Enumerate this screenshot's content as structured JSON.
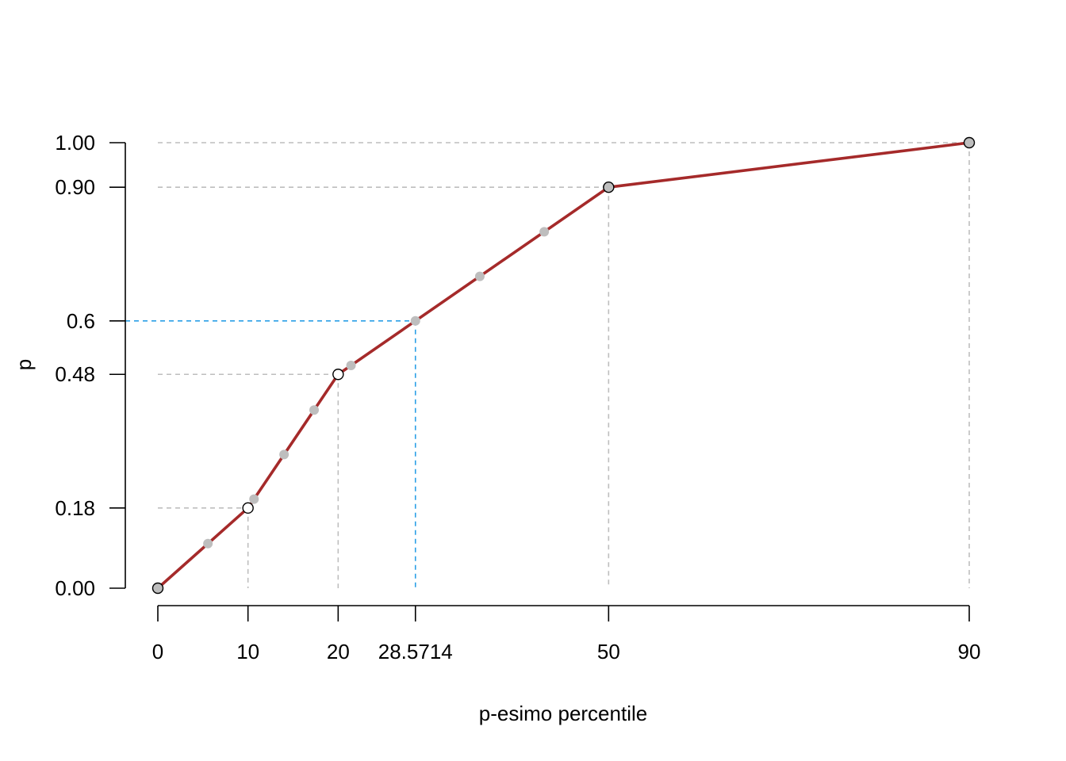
{
  "chart_data": {
    "type": "line",
    "title": "",
    "xlabel": "p-esimo percentile",
    "ylabel": "p",
    "xlim": [
      0,
      90
    ],
    "ylim": [
      0,
      1
    ],
    "x_ticks": [
      {
        "value": 0,
        "label": "0"
      },
      {
        "value": 10,
        "label": "10"
      },
      {
        "value": 20,
        "label": "20"
      },
      {
        "value": 28.5714,
        "label": "28.5714"
      },
      {
        "value": 50,
        "label": "50"
      },
      {
        "value": 90,
        "label": "90"
      }
    ],
    "y_ticks": [
      {
        "value": 0,
        "label": "0.00"
      },
      {
        "value": 0.18,
        "label": "0.18"
      },
      {
        "value": 0.48,
        "label": "0.48"
      },
      {
        "value": 0.6,
        "label": "0.6"
      },
      {
        "value": 0.9,
        "label": "0.90"
      },
      {
        "value": 1.0,
        "label": "1.00"
      }
    ],
    "series": [
      {
        "x": [
          0,
          10,
          20,
          50,
          90
        ],
        "y": [
          0,
          0.18,
          0.48,
          0.9,
          1.0
        ],
        "color": "#a52a2a"
      }
    ],
    "knots": [
      {
        "x": 0,
        "y": 0,
        "fill": "#bebebe"
      },
      {
        "x": 10,
        "y": 0.18,
        "fill": "#ffffff"
      },
      {
        "x": 20,
        "y": 0.48,
        "fill": "#ffffff"
      },
      {
        "x": 50,
        "y": 0.9,
        "fill": "#bebebe"
      },
      {
        "x": 90,
        "y": 1.0,
        "fill": "#bebebe"
      }
    ],
    "intermediate_points": [
      {
        "x": 5.5556,
        "y": 0.1
      },
      {
        "x": 10.6667,
        "y": 0.2
      },
      {
        "x": 14,
        "y": 0.3
      },
      {
        "x": 17.3333,
        "y": 0.4
      },
      {
        "x": 21.4286,
        "y": 0.5
      },
      {
        "x": 28.5714,
        "y": 0.6
      },
      {
        "x": 35.7143,
        "y": 0.7
      },
      {
        "x": 42.8571,
        "y": 0.8
      }
    ],
    "reference_lines": [
      {
        "x": 10,
        "y": 0.18
      },
      {
        "x": 20,
        "y": 0.48
      },
      {
        "x": 50,
        "y": 0.9
      },
      {
        "x": 90,
        "y": 1.0
      }
    ],
    "highlight": {
      "x": 28.5714,
      "y": 0.6,
      "color": "#2b9fe6"
    },
    "colors": {
      "reference": "#bebebe",
      "line": "#a52a2a",
      "highlight": "#2b9fe6",
      "axis": "#000000"
    },
    "grid": false,
    "legend": "none"
  }
}
